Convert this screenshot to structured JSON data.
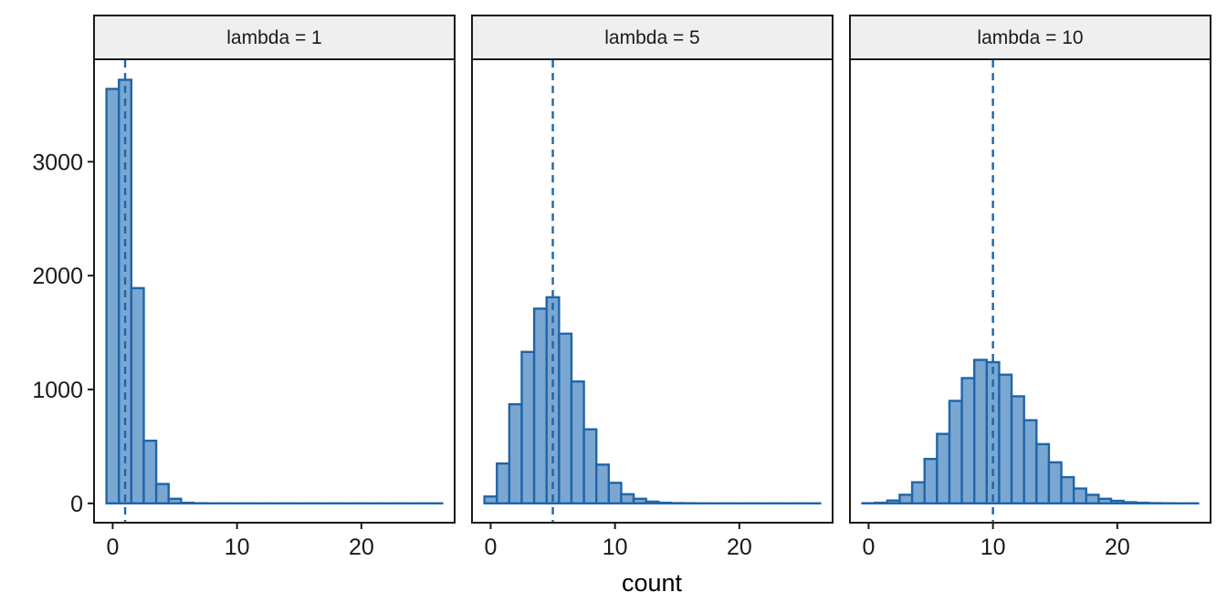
{
  "chart_data": {
    "type": "bar",
    "subtype": "faceted-histogram",
    "xlabel": "count",
    "ylabel": "",
    "xlim": [
      -1.5,
      27.5
    ],
    "ylim": [
      -170,
      3900
    ],
    "x_ticks": [
      0,
      10,
      20
    ],
    "x_tick_labels": [
      "0",
      "10",
      "20"
    ],
    "y_ticks": [
      0,
      1000,
      2000,
      3000
    ],
    "y_tick_labels": [
      "0",
      "1000",
      "2000",
      "3000"
    ],
    "bin_width": 1,
    "bin_centers": [
      0,
      1,
      2,
      3,
      4,
      5,
      6,
      7,
      8,
      9,
      10,
      11,
      12,
      13,
      14,
      15,
      16,
      17,
      18,
      19,
      20,
      21,
      22,
      23,
      24,
      25,
      26
    ],
    "grid": false,
    "legend": "none",
    "colors": {
      "fill": "#7aa7d2",
      "stroke": "#1f65a8",
      "vline": "#1f65a8"
    },
    "facets": [
      {
        "label": "lambda = 1",
        "vline": 1,
        "values": [
          3640,
          3720,
          1890,
          550,
          170,
          40,
          5,
          1,
          0,
          0,
          0,
          0,
          0,
          0,
          0,
          0,
          0,
          0,
          0,
          0,
          0,
          0,
          0,
          0,
          0,
          0,
          0
        ]
      },
      {
        "label": "lambda = 5",
        "vline": 5,
        "values": [
          60,
          350,
          870,
          1330,
          1710,
          1810,
          1490,
          1070,
          650,
          340,
          180,
          80,
          40,
          15,
          5,
          2,
          1,
          0,
          0,
          0,
          0,
          0,
          0,
          0,
          0,
          0,
          0
        ]
      },
      {
        "label": "lambda = 10",
        "vline": 10,
        "values": [
          1,
          5,
          25,
          75,
          185,
          390,
          610,
          900,
          1100,
          1260,
          1240,
          1130,
          940,
          730,
          520,
          360,
          230,
          130,
          75,
          40,
          22,
          10,
          5,
          2,
          1,
          0,
          0
        ]
      }
    ]
  }
}
